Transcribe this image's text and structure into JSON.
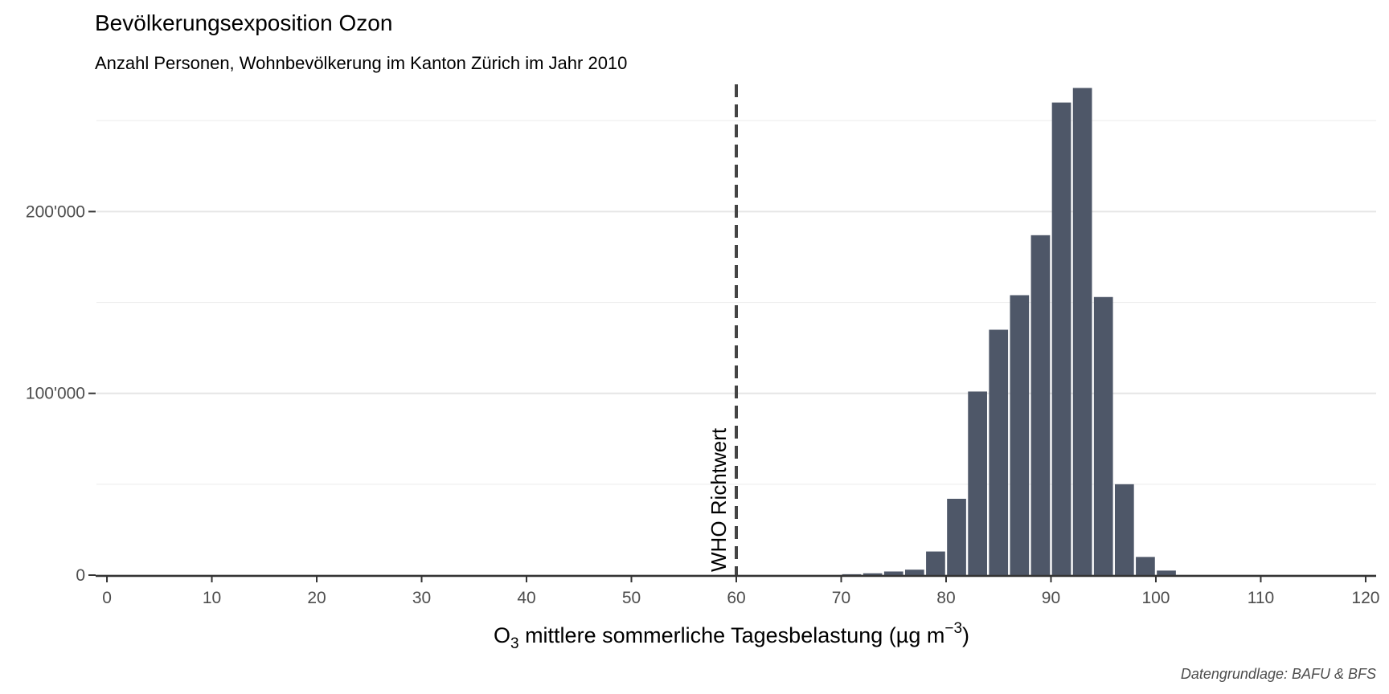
{
  "chart_data": {
    "type": "bar",
    "title": "Bevölkerungsexposition Ozon",
    "subtitle": "Anzahl Personen, Wohnbevölkerung im Kanton Zürich im Jahr 2010",
    "xlabel_main": "O",
    "xlabel_sub": "3",
    "xlabel_rest": " mittlere sommerliche Tagesbelastung (µg m",
    "xlabel_sup": "−3",
    "xlabel_end": ")",
    "caption": "Datengrundlage: BAFU & BFS",
    "xlim": [
      -1,
      121
    ],
    "ylim": [
      0,
      270000
    ],
    "x_ticks": [
      0,
      10,
      20,
      30,
      40,
      50,
      60,
      70,
      80,
      90,
      100,
      110,
      120
    ],
    "x_tick_labels": [
      "0",
      "10",
      "20",
      "30",
      "40",
      "50",
      "60",
      "70",
      "80",
      "90",
      "100",
      "110",
      "120"
    ],
    "y_ticks": [
      0,
      100000,
      200000
    ],
    "y_tick_labels": [
      "0",
      "100'000",
      "200'000"
    ],
    "bar_width": 2,
    "x": [
      71,
      73,
      75,
      77,
      79,
      81,
      83,
      85,
      87,
      89,
      91,
      93,
      95,
      97,
      99,
      101
    ],
    "values": [
      500,
      1000,
      2000,
      3000,
      13000,
      42000,
      101000,
      135000,
      154000,
      187000,
      260000,
      268000,
      153000,
      50000,
      10000,
      2500
    ],
    "bar_color": "#4e5768",
    "reference_line": {
      "x": 60,
      "label": "WHO Richtwert",
      "color": "#444444"
    },
    "grid": "horizontal",
    "legend": "none"
  }
}
